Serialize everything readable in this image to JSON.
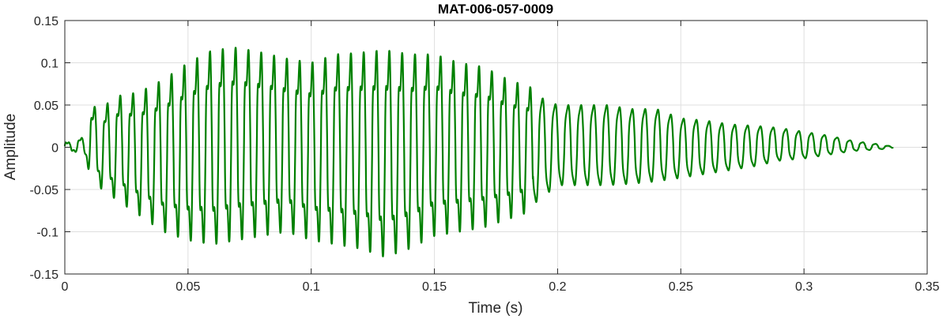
{
  "chart_data": {
    "type": "line",
    "title": "MAT-006-057-0009",
    "xlabel": "Time (s)",
    "ylabel": "Amplitude",
    "xlim": [
      0,
      0.35
    ],
    "ylim": [
      -0.15,
      0.15
    ],
    "xticks": [
      0,
      0.05,
      0.1,
      0.15,
      0.2,
      0.25,
      0.3,
      0.35
    ],
    "xtick_labels": [
      "0",
      "0.05",
      "0.1",
      "0.15",
      "0.2",
      "0.25",
      "0.3",
      "0.35"
    ],
    "yticks": [
      -0.15,
      -0.1,
      -0.05,
      0,
      0.05,
      0.1,
      0.15
    ],
    "ytick_labels": [
      "-0.15",
      "-0.1",
      "-0.05",
      "0",
      "0.05",
      "0.1",
      "0.15"
    ],
    "grid": true,
    "series": [
      {
        "color": "#008000",
        "x": [
          0,
          0.002,
          0.004,
          0.006,
          0.008,
          0.01,
          0.015,
          0.02,
          0.03,
          0.04,
          0.05,
          0.06,
          0.07,
          0.08,
          0.09,
          0.1,
          0.11,
          0.12,
          0.13,
          0.14,
          0.15,
          0.16,
          0.17,
          0.18,
          0.19,
          0.2,
          0.21,
          0.22,
          0.23,
          0.24,
          0.25,
          0.26,
          0.27,
          0.28,
          0.29,
          0.3,
          0.31,
          0.32,
          0.33,
          0.336
        ],
        "envelope_upper": [
          0.01,
          0.005,
          0.008,
          0.012,
          0.01,
          0.05,
          0.045,
          0.06,
          0.065,
          0.08,
          0.1,
          0.115,
          0.118,
          0.112,
          0.105,
          0.1,
          0.11,
          0.112,
          0.115,
          0.11,
          0.11,
          0.1,
          0.095,
          0.08,
          0.07,
          0.055,
          0.055,
          0.055,
          0.05,
          0.05,
          0.038,
          0.035,
          0.03,
          0.028,
          0.025,
          0.02,
          0.015,
          0.008,
          0.004,
          0.001
        ],
        "envelope_lower": [
          -0.01,
          -0.008,
          -0.005,
          -0.008,
          -0.01,
          -0.03,
          -0.05,
          -0.06,
          -0.08,
          -0.1,
          -0.11,
          -0.115,
          -0.11,
          -0.105,
          -0.1,
          -0.11,
          -0.115,
          -0.12,
          -0.13,
          -0.12,
          -0.105,
          -0.1,
          -0.095,
          -0.085,
          -0.075,
          -0.05,
          -0.05,
          -0.05,
          -0.048,
          -0.045,
          -0.04,
          -0.035,
          -0.03,
          -0.025,
          -0.018,
          -0.015,
          -0.01,
          -0.005,
          -0.003,
          -0.001
        ],
        "dominant_period_s": 0.0052
      }
    ]
  }
}
